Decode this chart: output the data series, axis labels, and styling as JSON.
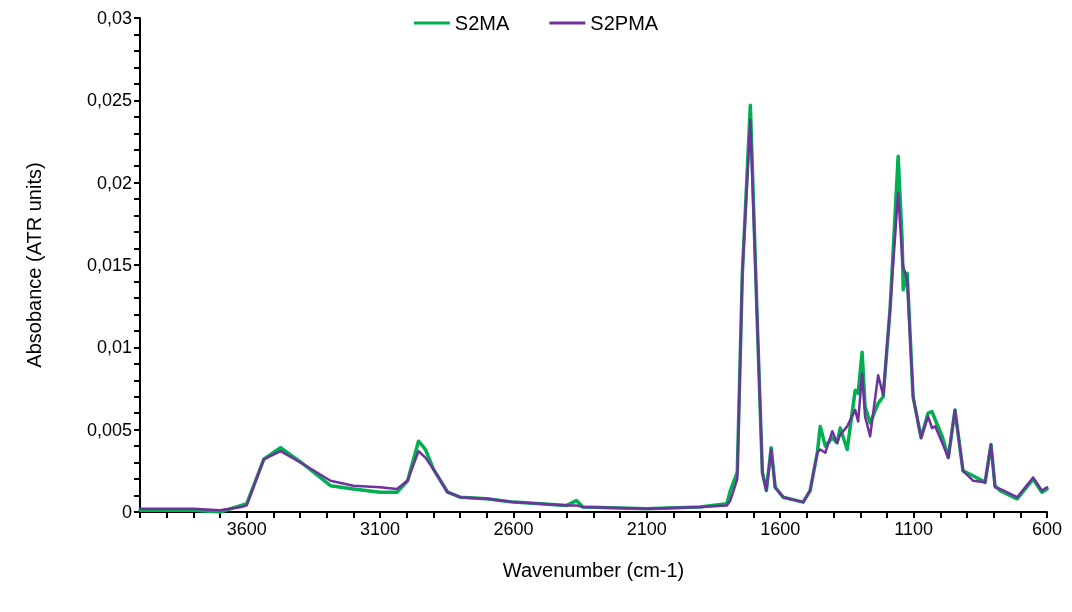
{
  "chart_data": {
    "type": "line",
    "xlabel": "Wavenumber (cm-1)",
    "ylabel": "Absobance (ATR units)",
    "x": [
      4000,
      3900,
      3800,
      3700,
      3620,
      3600,
      3536,
      3473,
      3387,
      3286,
      3200,
      3100,
      3037,
      2997,
      2956,
      2930,
      2900,
      2847,
      2800,
      2700,
      2600,
      2400,
      2364,
      2340,
      2100,
      1900,
      1800,
      1787,
      1761,
      1742,
      1712,
      1686,
      1667,
      1652,
      1634,
      1619,
      1589,
      1514,
      1488,
      1461,
      1450,
      1431,
      1405,
      1387,
      1375,
      1349,
      1319,
      1308,
      1293,
      1282,
      1263,
      1233,
      1214,
      1188,
      1158,
      1143,
      1139,
      1124,
      1102,
      1072,
      1046,
      1031,
      1019,
      993,
      970,
      945,
      915,
      877,
      832,
      810,
      795,
      776,
      712,
      652,
      619,
      600
    ],
    "series": [
      {
        "name": "S2MA",
        "color": "#00b050",
        "values": [
          0.0001,
          0.0001,
          0.0001,
          0.0,
          0.0004,
          0.0005,
          0.0032,
          0.0039,
          0.0029,
          0.0016,
          0.0014,
          0.0012,
          0.0012,
          0.0019,
          0.0043,
          0.0038,
          0.0026,
          0.0012,
          0.0009,
          0.0008,
          0.0006,
          0.0004,
          0.0007,
          0.0003,
          0.0002,
          0.0003,
          0.0005,
          0.0013,
          0.0024,
          0.0145,
          0.0247,
          0.0115,
          0.0024,
          0.0013,
          0.0039,
          0.0015,
          0.0009,
          0.0006,
          0.0013,
          0.0036,
          0.0052,
          0.004,
          0.0045,
          0.0042,
          0.0051,
          0.0038,
          0.0074,
          0.0072,
          0.0097,
          0.0064,
          0.0054,
          0.0066,
          0.007,
          0.0124,
          0.0216,
          0.0165,
          0.0135,
          0.0145,
          0.007,
          0.0045,
          0.006,
          0.0061,
          0.0056,
          0.0046,
          0.0033,
          0.0062,
          0.0025,
          0.0022,
          0.0018,
          0.0041,
          0.0016,
          0.0013,
          0.0008,
          0.002,
          0.0012,
          0.0014
        ]
      },
      {
        "name": "S2PMA",
        "color": "#7030a0",
        "values": [
          0.0002,
          0.0002,
          0.0002,
          0.0001,
          0.0003,
          0.0004,
          0.0032,
          0.0037,
          0.0029,
          0.0019,
          0.0016,
          0.0015,
          0.0014,
          0.0019,
          0.0037,
          0.0033,
          0.0026,
          0.0012,
          0.0009,
          0.0008,
          0.0006,
          0.0004,
          0.0004,
          0.0003,
          0.0002,
          0.0003,
          0.0004,
          0.0007,
          0.002,
          0.0145,
          0.0238,
          0.0115,
          0.0024,
          0.0013,
          0.0038,
          0.0015,
          0.0009,
          0.0006,
          0.0013,
          0.0036,
          0.0038,
          0.0036,
          0.0049,
          0.0042,
          0.0047,
          0.0052,
          0.0062,
          0.0055,
          0.0084,
          0.0058,
          0.0046,
          0.0083,
          0.0071,
          0.0124,
          0.0194,
          0.0155,
          0.0149,
          0.0141,
          0.007,
          0.0045,
          0.0058,
          0.0051,
          0.0052,
          0.0042,
          0.0033,
          0.0062,
          0.0025,
          0.0019,
          0.0018,
          0.0041,
          0.0015,
          0.0014,
          0.0009,
          0.0021,
          0.0013,
          0.0015
        ]
      }
    ],
    "xlim": [
      4000,
      600
    ],
    "xticks": [
      {
        "value": 4000,
        "label": null
      },
      {
        "value": 3900,
        "label": null
      },
      {
        "value": 3800,
        "label": null
      },
      {
        "value": 3700,
        "label": null
      },
      3600,
      {
        "value": 3500,
        "label": null
      },
      {
        "value": 3400,
        "label": null
      },
      {
        "value": 3300,
        "label": null
      },
      {
        "value": 3200,
        "label": null
      },
      3100,
      {
        "value": 3000,
        "label": null
      },
      {
        "value": 2900,
        "label": null
      },
      {
        "value": 2800,
        "label": null
      },
      {
        "value": 2700,
        "label": null
      },
      2600,
      {
        "value": 2500,
        "label": null
      },
      {
        "value": 2400,
        "label": null
      },
      {
        "value": 2300,
        "label": null
      },
      {
        "value": 2200,
        "label": null
      },
      2100,
      {
        "value": 2000,
        "label": null
      },
      {
        "value": 1900,
        "label": null
      },
      {
        "value": 1800,
        "label": null
      },
      {
        "value": 1700,
        "label": null
      },
      1600,
      {
        "value": 1500,
        "label": null
      },
      {
        "value": 1400,
        "label": null
      },
      {
        "value": 1300,
        "label": null
      },
      {
        "value": 1200,
        "label": null
      },
      1100,
      {
        "value": 1000,
        "label": null
      },
      {
        "value": 900,
        "label": null
      },
      {
        "value": 800,
        "label": null
      },
      {
        "value": 700,
        "label": null
      },
      600
    ],
    "ylim": [
      0,
      0.03
    ],
    "yticks": [
      0,
      {
        "value": 0.001,
        "label": null
      },
      {
        "value": 0.002,
        "label": null
      },
      {
        "value": 0.003,
        "label": null
      },
      {
        "value": 0.004,
        "label": null
      },
      {
        "value": 0.005,
        "label": "0,005"
      },
      {
        "value": 0.006,
        "label": null
      },
      {
        "value": 0.007,
        "label": null
      },
      {
        "value": 0.008,
        "label": null
      },
      {
        "value": 0.009,
        "label": null
      },
      {
        "value": 0.01,
        "label": "0,01"
      },
      {
        "value": 0.011,
        "label": null
      },
      {
        "value": 0.012,
        "label": null
      },
      {
        "value": 0.013,
        "label": null
      },
      {
        "value": 0.014,
        "label": null
      },
      {
        "value": 0.015,
        "label": "0,015"
      },
      {
        "value": 0.016,
        "label": null
      },
      {
        "value": 0.017,
        "label": null
      },
      {
        "value": 0.018,
        "label": null
      },
      {
        "value": 0.019,
        "label": null
      },
      {
        "value": 0.02,
        "label": "0,02"
      },
      {
        "value": 0.021,
        "label": null
      },
      {
        "value": 0.022,
        "label": null
      },
      {
        "value": 0.023,
        "label": null
      },
      {
        "value": 0.024,
        "label": null
      },
      {
        "value": 0.025,
        "label": "0,025"
      },
      {
        "value": 0.026,
        "label": null
      },
      {
        "value": 0.027,
        "label": null
      },
      {
        "value": 0.028,
        "label": null
      },
      {
        "value": 0.029,
        "label": null
      },
      {
        "value": 0.03,
        "label": "0,03"
      }
    ],
    "grid": false,
    "legend": "top",
    "marker": "none",
    "line_style": "solid"
  }
}
